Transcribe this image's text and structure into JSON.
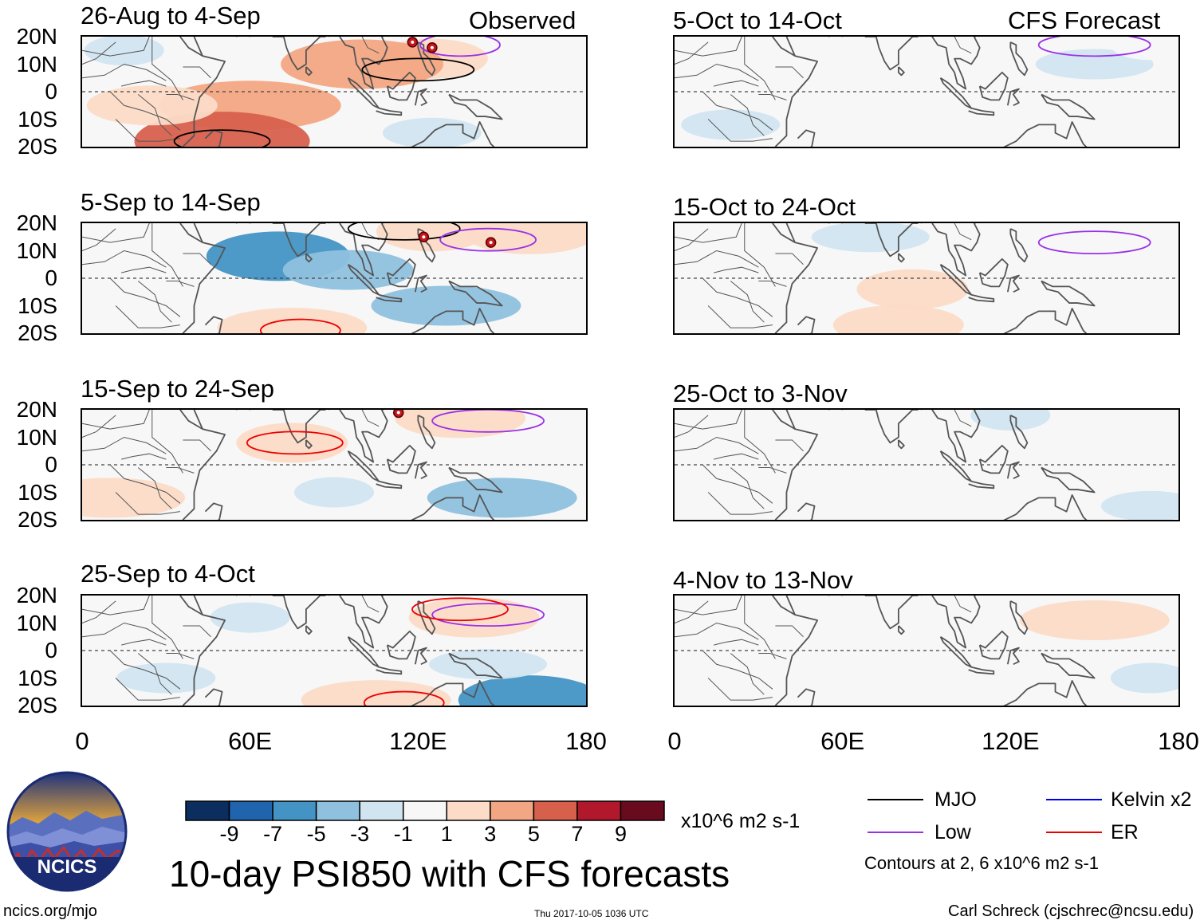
{
  "chart_data": {
    "type": "heatmap",
    "title": "10-day PSI850 with CFS forecasts",
    "variable": "PSI850",
    "units": "x10^6 m2 s-1",
    "x_axis": {
      "range": [
        0,
        180
      ],
      "tick_labels": [
        "0",
        "60E",
        "120E",
        "180"
      ]
    },
    "y_axis": {
      "range": [
        -20,
        20
      ],
      "tick_labels": [
        "20N",
        "10N",
        "0",
        "10S",
        "20S"
      ]
    },
    "column_headers": {
      "observed": "Observed",
      "forecast": "CFS Forecast"
    },
    "colorbar": {
      "tick_labels": [
        "-9",
        "-7",
        "-5",
        "-3",
        "-1",
        "1",
        "3",
        "5",
        "7",
        "9"
      ],
      "colors": [
        "#0b2e5e",
        "#1f64ad",
        "#4393c4",
        "#8fc1de",
        "#d1e5f1",
        "#f7f7f7",
        "#fcdbc7",
        "#f3a683",
        "#d7604d",
        "#b2182b",
        "#6a0a1f"
      ]
    },
    "contour_legend": [
      {
        "label": "MJO",
        "color": "#000000"
      },
      {
        "label": "Kelvin x2",
        "color": "#0000ee"
      },
      {
        "label": "Low",
        "color": "#9a30e6"
      },
      {
        "label": "ER",
        "color": "#ee0000"
      }
    ],
    "contour_note": "Contours at 2, 6 x10^6 m2 s-1",
    "panels": [
      {
        "title": "26-Aug to 4-Sep",
        "column": "observed",
        "anomalies": [
          {
            "lon": 125,
            "lat": 12,
            "value": 3
          },
          {
            "lon": 100,
            "lat": 10,
            "value": 5
          },
          {
            "lon": 60,
            "lat": -5,
            "value": 5
          },
          {
            "lon": 50,
            "lat": -18,
            "value": 7
          },
          {
            "lon": 25,
            "lat": -5,
            "value": 3
          },
          {
            "lon": 160,
            "lat": 0,
            "value": 1
          },
          {
            "lon": 15,
            "lat": 15,
            "value": -1
          },
          {
            "lon": 125,
            "lat": -15,
            "value": -1
          }
        ],
        "contours": [
          {
            "type": "MJO",
            "lon": 120,
            "lat": 8
          },
          {
            "type": "MJO",
            "lon": 50,
            "lat": -18
          },
          {
            "type": "Low",
            "lon": 135,
            "lat": 17
          }
        ],
        "storms": [
          {
            "lon": 118,
            "lat": 18
          },
          {
            "lon": 125,
            "lat": 16
          }
        ]
      },
      {
        "title": "5-Sep to 14-Sep",
        "column": "observed",
        "anomalies": [
          {
            "lon": 70,
            "lat": 8,
            "value": -5
          },
          {
            "lon": 95,
            "lat": 3,
            "value": -3
          },
          {
            "lon": 130,
            "lat": -10,
            "value": -3
          },
          {
            "lon": 125,
            "lat": 17,
            "value": 3
          },
          {
            "lon": 160,
            "lat": 16,
            "value": 3
          },
          {
            "lon": 75,
            "lat": -18,
            "value": 3
          },
          {
            "lon": 15,
            "lat": -10,
            "value": 1
          }
        ],
        "contours": [
          {
            "type": "MJO",
            "lon": 115,
            "lat": 18
          },
          {
            "type": "Low",
            "lon": 145,
            "lat": 14
          },
          {
            "type": "ER",
            "lon": 78,
            "lat": -19
          }
        ],
        "storms": [
          {
            "lon": 122,
            "lat": 15
          },
          {
            "lon": 146,
            "lat": 13
          }
        ]
      },
      {
        "title": "15-Sep to 24-Sep",
        "column": "observed",
        "anomalies": [
          {
            "lon": 75,
            "lat": 8,
            "value": 3
          },
          {
            "lon": 135,
            "lat": 17,
            "value": 3
          },
          {
            "lon": 150,
            "lat": -12,
            "value": -3
          },
          {
            "lon": 90,
            "lat": -10,
            "value": -1
          },
          {
            "lon": 20,
            "lat": 0,
            "value": 1
          },
          {
            "lon": 10,
            "lat": -12,
            "value": 3
          }
        ],
        "contours": [
          {
            "type": "Low",
            "lon": 145,
            "lat": 16
          },
          {
            "type": "ER",
            "lon": 76,
            "lat": 8
          }
        ],
        "storms": [
          {
            "lon": 113,
            "lat": 19
          }
        ]
      },
      {
        "title": "25-Sep to 4-Oct",
        "column": "observed",
        "anomalies": [
          {
            "lon": 60,
            "lat": 12,
            "value": -1
          },
          {
            "lon": 140,
            "lat": 12,
            "value": 3
          },
          {
            "lon": 105,
            "lat": -18,
            "value": 3
          },
          {
            "lon": 160,
            "lat": -18,
            "value": -5
          },
          {
            "lon": 30,
            "lat": -10,
            "value": -1
          },
          {
            "lon": 145,
            "lat": -5,
            "value": -1
          }
        ],
        "contours": [
          {
            "type": "Low",
            "lon": 145,
            "lat": 13
          },
          {
            "type": "ER",
            "lon": 135,
            "lat": 15
          },
          {
            "type": "ER",
            "lon": 115,
            "lat": -19
          }
        ],
        "storms": []
      },
      {
        "title": "5-Oct to 14-Oct",
        "column": "forecast",
        "anomalies": [
          {
            "lon": 55,
            "lat": 5,
            "value": 1
          },
          {
            "lon": 100,
            "lat": -3,
            "value": 1
          },
          {
            "lon": 150,
            "lat": 10,
            "value": -1
          },
          {
            "lon": 170,
            "lat": 17,
            "value": 1
          },
          {
            "lon": 20,
            "lat": -12,
            "value": -1
          }
        ],
        "contours": [
          {
            "type": "Low",
            "lon": 150,
            "lat": 17
          }
        ],
        "storms": []
      },
      {
        "title": "15-Oct to 24-Oct",
        "column": "forecast",
        "anomalies": [
          {
            "lon": 80,
            "lat": -5,
            "value": 1
          },
          {
            "lon": 120,
            "lat": -12,
            "value": 1
          },
          {
            "lon": 150,
            "lat": 10,
            "value": 1
          },
          {
            "lon": 85,
            "lat": -4,
            "value": 3
          },
          {
            "lon": 80,
            "lat": -17,
            "value": 3
          },
          {
            "lon": 70,
            "lat": 15,
            "value": -1
          }
        ],
        "contours": [
          {
            "type": "Low",
            "lon": 150,
            "lat": 13
          }
        ],
        "storms": []
      },
      {
        "title": "25-Oct to 3-Nov",
        "column": "forecast",
        "anomalies": [
          {
            "lon": 90,
            "lat": 5,
            "value": 1
          },
          {
            "lon": 140,
            "lat": 0,
            "value": 1
          },
          {
            "lon": 10,
            "lat": 15,
            "value": 1
          },
          {
            "lon": 120,
            "lat": 18,
            "value": -1
          },
          {
            "lon": 170,
            "lat": -15,
            "value": -1
          }
        ],
        "contours": [],
        "storms": []
      },
      {
        "title": "4-Nov to 13-Nov",
        "column": "forecast",
        "anomalies": [
          {
            "lon": 150,
            "lat": 12,
            "value": 1
          },
          {
            "lon": 75,
            "lat": -10,
            "value": 1
          },
          {
            "lon": 150,
            "lat": 11,
            "value": 3
          },
          {
            "lon": 170,
            "lat": -10,
            "value": -1
          },
          {
            "lon": 5,
            "lat": 15,
            "value": 1
          }
        ],
        "contours": [],
        "storms": []
      }
    ]
  },
  "footer": {
    "logo_text": "NCICS",
    "site": "ncics.org/mjo",
    "timestamp": "Thu 2017-10-05 1036 UTC",
    "author": "Carl Schreck (cjschrec@ncsu.edu)"
  },
  "colors": {
    "coast": "#555555",
    "equator": "#444444",
    "logo_sky": "#1b3a8a",
    "logo_sun": "#f2c94c",
    "logo_mountain": "#6c7fc7"
  }
}
